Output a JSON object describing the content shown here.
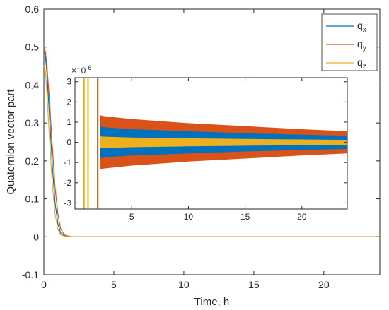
{
  "chart_data": [
    {
      "type": "line",
      "title": "",
      "xlabel": "Time, h",
      "ylabel": "Quaternion vector part",
      "xlim": [
        0,
        24
      ],
      "ylim": [
        -0.1,
        0.6
      ],
      "x_ticks": [
        0,
        5,
        10,
        15,
        20
      ],
      "x_tick_labels": [
        "0",
        "5",
        "10",
        "15",
        "20"
      ],
      "y_ticks": [
        -0.1,
        0,
        0.1,
        0.2,
        0.3,
        0.4,
        0.5,
        0.6
      ],
      "y_tick_labels": [
        "-0.1",
        "0",
        "0.1",
        "0.2",
        "0.3",
        "0.4",
        "0.5",
        "0.6"
      ],
      "grid": false,
      "legend_position": "top-right",
      "series": [
        {
          "name": "q",
          "subscript": "x",
          "color": "#0072BD",
          "x": [
            0,
            0.1,
            0.2,
            0.4,
            0.6,
            0.8,
            1.0,
            1.2,
            1.5,
            2,
            5,
            24
          ],
          "y": [
            0.49,
            0.48,
            0.44,
            0.32,
            0.19,
            0.09,
            0.035,
            0.01,
            0.002,
            0,
            0,
            0
          ]
        },
        {
          "name": "q",
          "subscript": "y",
          "color": "#D95319",
          "x": [
            0,
            0.1,
            0.2,
            0.4,
            0.6,
            0.8,
            1.0,
            1.2,
            1.5,
            2,
            5,
            24
          ],
          "y": [
            0.5,
            0.49,
            0.46,
            0.36,
            0.24,
            0.13,
            0.06,
            0.02,
            0.004,
            0,
            0,
            0
          ]
        },
        {
          "name": "q",
          "subscript": "z",
          "color": "#EDB120",
          "x": [
            0,
            0.1,
            0.2,
            0.4,
            0.6,
            0.8,
            1.0,
            1.2,
            1.5,
            2,
            5,
            24
          ],
          "y": [
            0.45,
            0.44,
            0.39,
            0.26,
            0.14,
            0.06,
            0.02,
            0.005,
            0.001,
            0,
            0,
            0
          ]
        }
      ]
    },
    {
      "type": "area",
      "title": "",
      "xlim": [
        0,
        24
      ],
      "ylim": [
        -3.3,
        3.2
      ],
      "y_exponent_label": "×10",
      "y_exponent_power": "-6",
      "x_ticks": [
        5,
        10,
        15,
        20
      ],
      "x_tick_labels": [
        "5",
        "10",
        "15",
        "20"
      ],
      "y_ticks": [
        -3,
        -2,
        -1,
        0,
        1,
        2,
        3
      ],
      "y_tick_labels": [
        "-3",
        "-2",
        "-1",
        "0",
        "1",
        "2",
        "3"
      ],
      "grid": false,
      "note": "oscillation envelope amplitude, ×10^-6",
      "series": [
        {
          "name": "q_y",
          "color": "#D95319",
          "x": [
            2.2,
            2.5,
            5,
            10,
            15,
            20,
            24
          ],
          "y_max": [
            1.35,
            1.3,
            1.15,
            0.95,
            0.8,
            0.65,
            0.55
          ]
        },
        {
          "name": "q_x",
          "color": "#0072BD",
          "x": [
            2.2,
            2.5,
            5,
            10,
            15,
            20,
            24
          ],
          "y_max": [
            0.8,
            0.75,
            0.65,
            0.55,
            0.45,
            0.38,
            0.33
          ]
        },
        {
          "name": "q_z",
          "color": "#EDB120",
          "x": [
            2.2,
            2.5,
            5,
            10,
            15,
            20,
            24
          ],
          "y_max": [
            0.3,
            0.28,
            0.24,
            0.2,
            0.17,
            0.14,
            0.12
          ]
        }
      ],
      "transient_spikes": [
        {
          "x": 0.8,
          "color": "#EDB120"
        },
        {
          "x": 1.15,
          "color": "#EDB120"
        },
        {
          "x": 2.0,
          "color": "#D95319"
        }
      ]
    }
  ]
}
